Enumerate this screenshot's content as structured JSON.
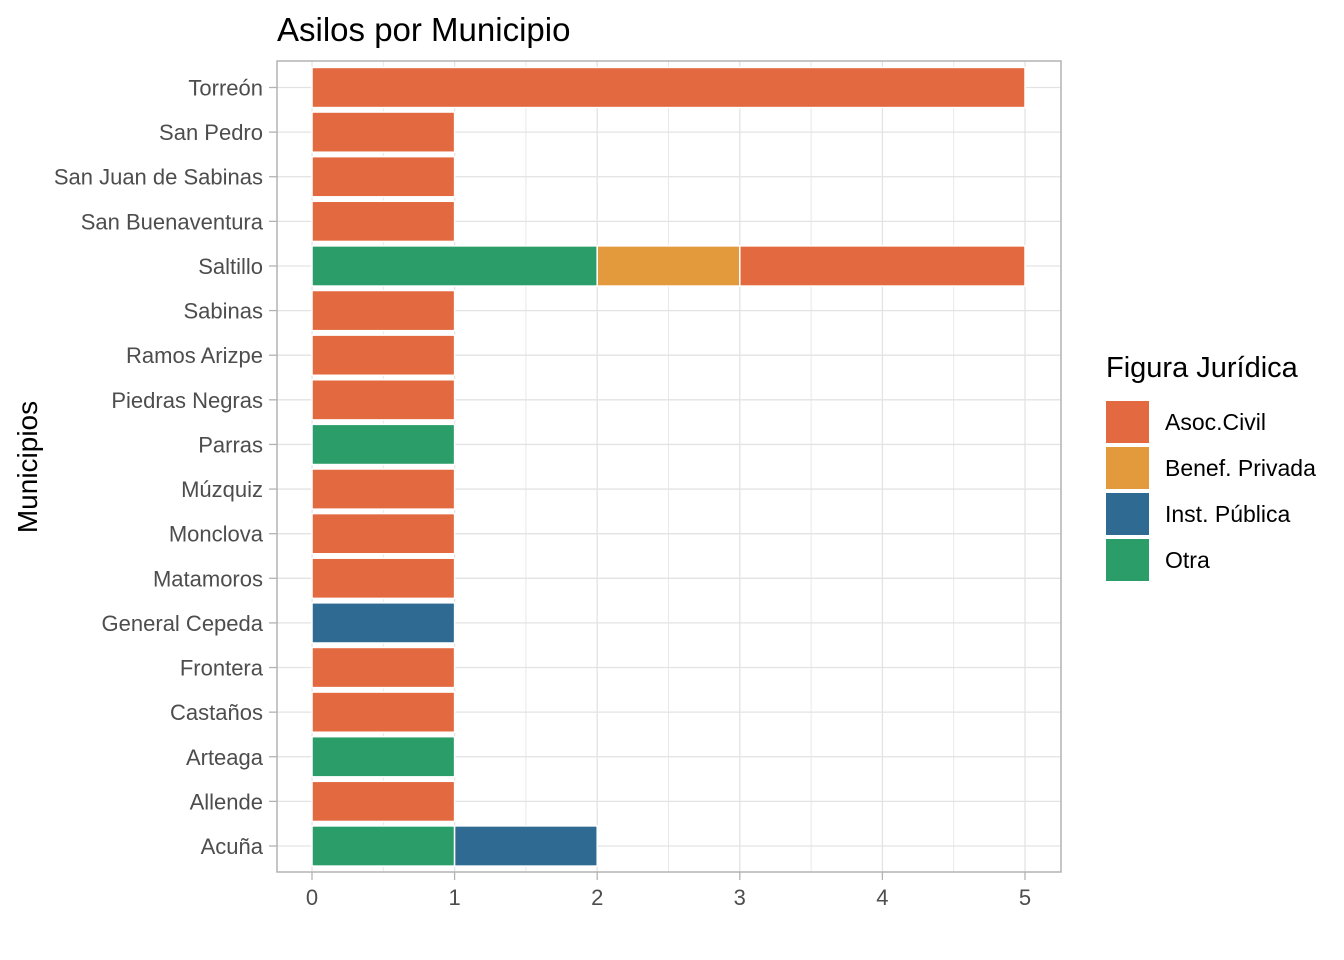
{
  "chart_data": {
    "type": "bar",
    "orientation": "horizontal",
    "stacked": true,
    "title": "Asilos por Municipio",
    "xlabel": "",
    "ylabel": "Municipios",
    "xlim": [
      0,
      5
    ],
    "x_ticks": [
      "0",
      "1",
      "2",
      "3",
      "4",
      "5"
    ],
    "grid": true,
    "legend_position": "right",
    "legend_title": "Figura Jurídica",
    "categories": [
      "Acuña",
      "Allende",
      "Arteaga",
      "Castaños",
      "Frontera",
      "General Cepeda",
      "Matamoros",
      "Monclova",
      "Múzquiz",
      "Parras",
      "Piedras Negras",
      "Ramos Arizpe",
      "Sabinas",
      "Saltillo",
      "San Buenaventura",
      "San Juan de Sabinas",
      "San Pedro",
      "Torreón"
    ],
    "series": [
      {
        "name": "Otra",
        "color": "#2a9d68",
        "values": [
          1,
          0,
          1,
          0,
          0,
          0,
          0,
          0,
          0,
          1,
          0,
          0,
          0,
          2,
          0,
          0,
          0,
          0
        ]
      },
      {
        "name": "Inst. Pública",
        "color": "#2e6a91",
        "values": [
          1,
          0,
          0,
          0,
          0,
          1,
          0,
          0,
          0,
          0,
          0,
          0,
          0,
          0,
          0,
          0,
          0,
          0
        ]
      },
      {
        "name": "Benef. Privada",
        "color": "#e39a3c",
        "values": [
          0,
          0,
          0,
          0,
          0,
          0,
          0,
          0,
          0,
          0,
          0,
          0,
          0,
          1,
          0,
          0,
          0,
          0
        ]
      },
      {
        "name": "Asoc.Civil",
        "color": "#e36a40",
        "values": [
          0,
          1,
          0,
          1,
          1,
          0,
          1,
          1,
          1,
          0,
          1,
          1,
          1,
          2,
          1,
          1,
          1,
          5
        ]
      }
    ],
    "legend_order": [
      "Asoc.Civil",
      "Benef. Privada",
      "Inst. Pública",
      "Otra"
    ]
  }
}
